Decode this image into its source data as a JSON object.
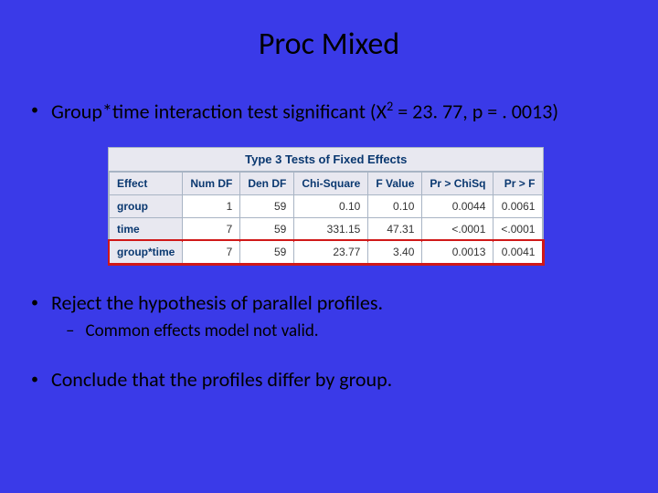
{
  "title": "Proc Mixed",
  "bullets": {
    "b1_pre": "Group*time interaction test significant (X",
    "b1_sup": "2",
    "b1_post": " = 23. 77, p = . 0013)",
    "b2": "Reject the hypothesis of parallel profiles.",
    "b2_sub": "Common effects model not valid.",
    "b3": "Conclude that the profiles differ by group."
  },
  "table": {
    "type": "table",
    "title": "Type 3 Tests of Fixed Effects",
    "background_color": "#ffffff",
    "header_bg": "#e8e8f0",
    "header_color": "#0a3870",
    "border_color": "#a8b4c4",
    "highlight_color": "#d01818",
    "highlight_row_index": 2,
    "font_size_pt": 9,
    "columns": [
      "Effect",
      "Num DF",
      "Den DF",
      "Chi-Square",
      "F Value",
      "Pr > ChiSq",
      "Pr > F"
    ],
    "col_align": [
      "left",
      "right",
      "right",
      "right",
      "right",
      "right",
      "right"
    ],
    "rows": [
      [
        "group",
        "1",
        "59",
        "0.10",
        "0.10",
        "0.0044",
        "0.0061"
      ],
      [
        "time",
        "7",
        "59",
        "331.15",
        "47.31",
        "<.0001",
        "<.0001"
      ],
      [
        "group*time",
        "7",
        "59",
        "23.77",
        "3.40",
        "0.0013",
        "0.0041"
      ]
    ]
  }
}
